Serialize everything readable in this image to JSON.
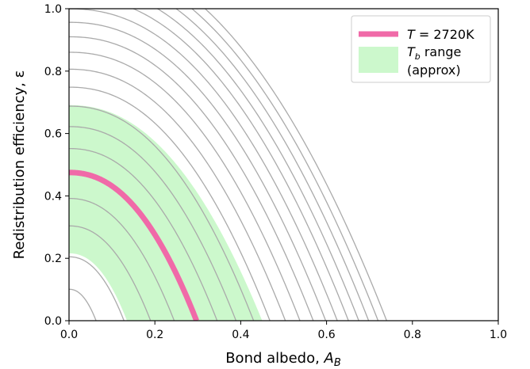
{
  "chart_data": {
    "type": "line",
    "xlabel": {
      "text": "Bond albedo, ",
      "var": "A",
      "sub": "B"
    },
    "ylabel": "Redistribution efficiency, ε",
    "xlim": [
      0.0,
      1.0
    ],
    "ylim": [
      0.0,
      1.0
    ],
    "xticks": [
      "0.0",
      "0.2",
      "0.4",
      "0.6",
      "0.8",
      "1.0"
    ],
    "yticks": [
      "0.0",
      "0.2",
      "0.4",
      "0.6",
      "0.8",
      "1.0"
    ],
    "grid": false,
    "legend_position": "top-right",
    "contour_x_intercepts": [
      0.063,
      0.128,
      0.19,
      0.245,
      0.297,
      0.345,
      0.389,
      0.43,
      0.468,
      0.504,
      0.538,
      0.569,
      0.598,
      0.625,
      0.651,
      0.675,
      0.698,
      0.72,
      0.74
    ],
    "contour_color": "#aaaaaa",
    "highlight": {
      "legend_var": "T",
      "legend_value": " = 2720K",
      "x_intercept": 0.297,
      "y_intercept": 0.475,
      "color": "#f06aa8"
    },
    "band": {
      "legend_var": "T",
      "legend_sub": "b",
      "legend_line1_rest": " range",
      "legend_line2": "(approx)",
      "inner_x_intercept": 0.135,
      "outer_x_intercept": 0.45,
      "color": "#ccf8cc"
    }
  }
}
